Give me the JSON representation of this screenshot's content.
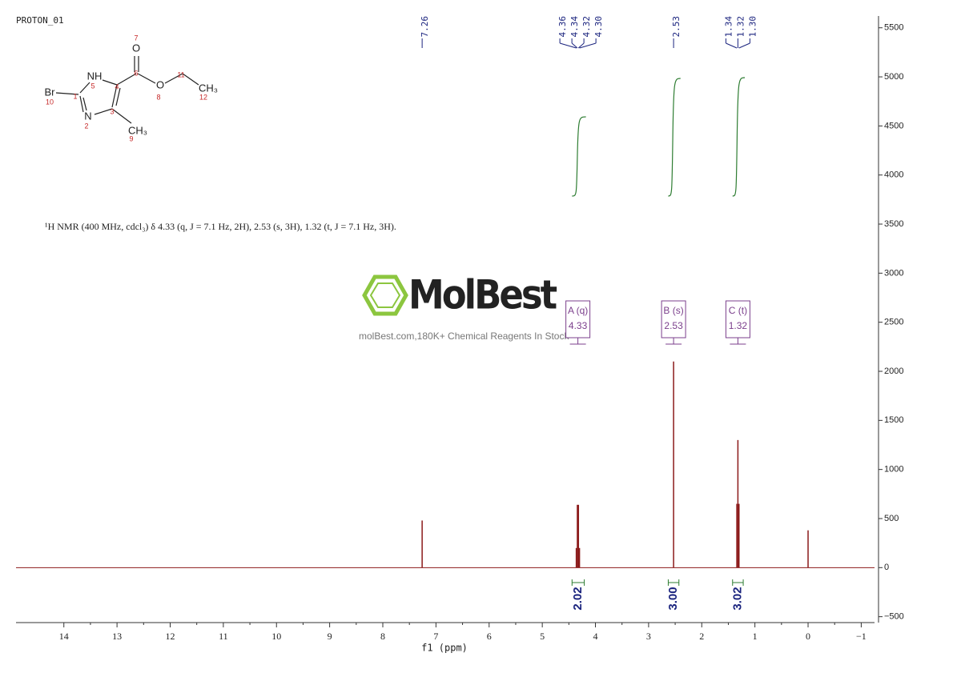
{
  "chart_data": {
    "type": "nmr",
    "title": "PROTON_01",
    "xlabel": "f1 (ppm)",
    "annotation": "¹H NMR (400 MHz, cdcl₃) δ 4.33 (q, J = 7.1 Hz, 2H), 2.53 (s, 3H), 1.32 (t, J = 7.1 Hz, 3H).",
    "xlim": [
      14.9,
      -1.25
    ],
    "xticks": [
      14,
      13,
      12,
      11,
      10,
      9,
      8,
      7,
      6,
      5,
      4,
      3,
      2,
      1,
      0,
      {
        "value": -1,
        "label": "−1"
      }
    ],
    "ylim": [
      -560,
      5620
    ],
    "yticks": [
      {
        "value": -500,
        "label": "−500"
      },
      0,
      500,
      1000,
      1500,
      2000,
      2500,
      3000,
      3500,
      4000,
      4500,
      5000,
      5500
    ],
    "color": "#8b1a1a",
    "peaks": {
      "x": [
        7.26,
        4.36,
        4.34,
        4.32,
        4.3,
        2.53,
        1.34,
        1.32,
        1.3,
        0
      ],
      "values": [
        480,
        200,
        640,
        640,
        200,
        2100,
        650,
        1300,
        650,
        380
      ]
    },
    "peak_labels": [
      7.26,
      4.36,
      4.34,
      4.32,
      {
        "value": 4.3,
        "label": "4.30"
      },
      2.53,
      1.34,
      1.32,
      {
        "value": 1.3,
        "label": "1.30"
      }
    ],
    "integrals": [
      {
        "range": [
          4.38,
          4.27
        ],
        "value": 2.02
      },
      {
        "range": [
          2.57,
          2.49
        ],
        "value": {
          "value": 3,
          "label": "3.00"
        }
      },
      {
        "range": [
          1.36,
          1.28
        ],
        "value": 3.02
      }
    ],
    "multiplets": [
      {
        "name": "A (q)",
        "shift": 4.33
      },
      {
        "name": "B (s)",
        "shift": 2.53
      },
      {
        "name": "C (t)",
        "shift": 1.32
      }
    ],
    "molecule": {
      "atoms": [
        "Br",
        "NH",
        "N",
        "O",
        "O",
        "CH₃",
        "CH₃"
      ],
      "numbers": [
        1,
        2,
        3,
        4,
        5,
        6,
        7,
        8,
        9,
        10,
        11,
        12
      ]
    },
    "watermark": {
      "brand": "MolBest",
      "tagline": "molBest.com,180K+ Chemical Reagents In Stock"
    }
  }
}
